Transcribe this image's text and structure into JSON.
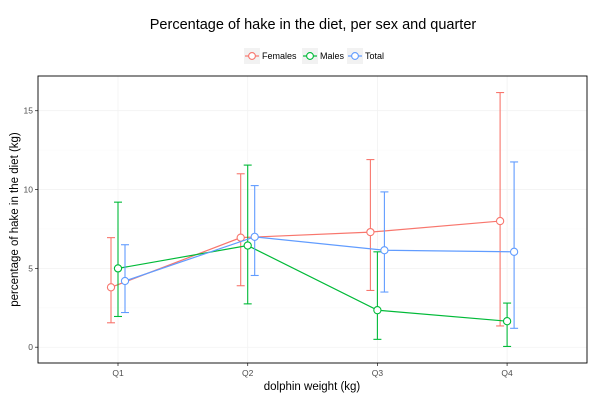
{
  "chart_data": {
    "type": "line",
    "title": "Percentage of hake in the diet, per sex and quarter",
    "xlabel": "dolphin weight (kg)",
    "ylabel": "percentage of hake in the diet (kg)",
    "categories": [
      "Q1",
      "Q2",
      "Q3",
      "Q4"
    ],
    "ylim": [
      -1.0,
      17.2
    ],
    "yticks": [
      0,
      5,
      10,
      15
    ],
    "grid": true,
    "legend_position": "top",
    "error_bars": true,
    "series": [
      {
        "name": "Females",
        "color": "#F8766D",
        "values": [
          3.8,
          6.95,
          7.3,
          8.0
        ],
        "lower": [
          1.55,
          3.9,
          3.6,
          1.35
        ],
        "upper": [
          6.95,
          11.0,
          11.9,
          16.15
        ]
      },
      {
        "name": "Males",
        "color": "#00BA38",
        "values": [
          5.0,
          6.45,
          2.35,
          1.65
        ],
        "lower": [
          1.95,
          2.75,
          0.5,
          0.05
        ],
        "upper": [
          9.2,
          11.55,
          6.05,
          2.8
        ]
      },
      {
        "name": "Total",
        "color": "#619CFF",
        "values": [
          4.2,
          7.0,
          6.15,
          6.05
        ],
        "lower": [
          2.2,
          4.55,
          3.5,
          1.2
        ],
        "upper": [
          6.5,
          10.25,
          9.85,
          11.75
        ]
      }
    ]
  }
}
